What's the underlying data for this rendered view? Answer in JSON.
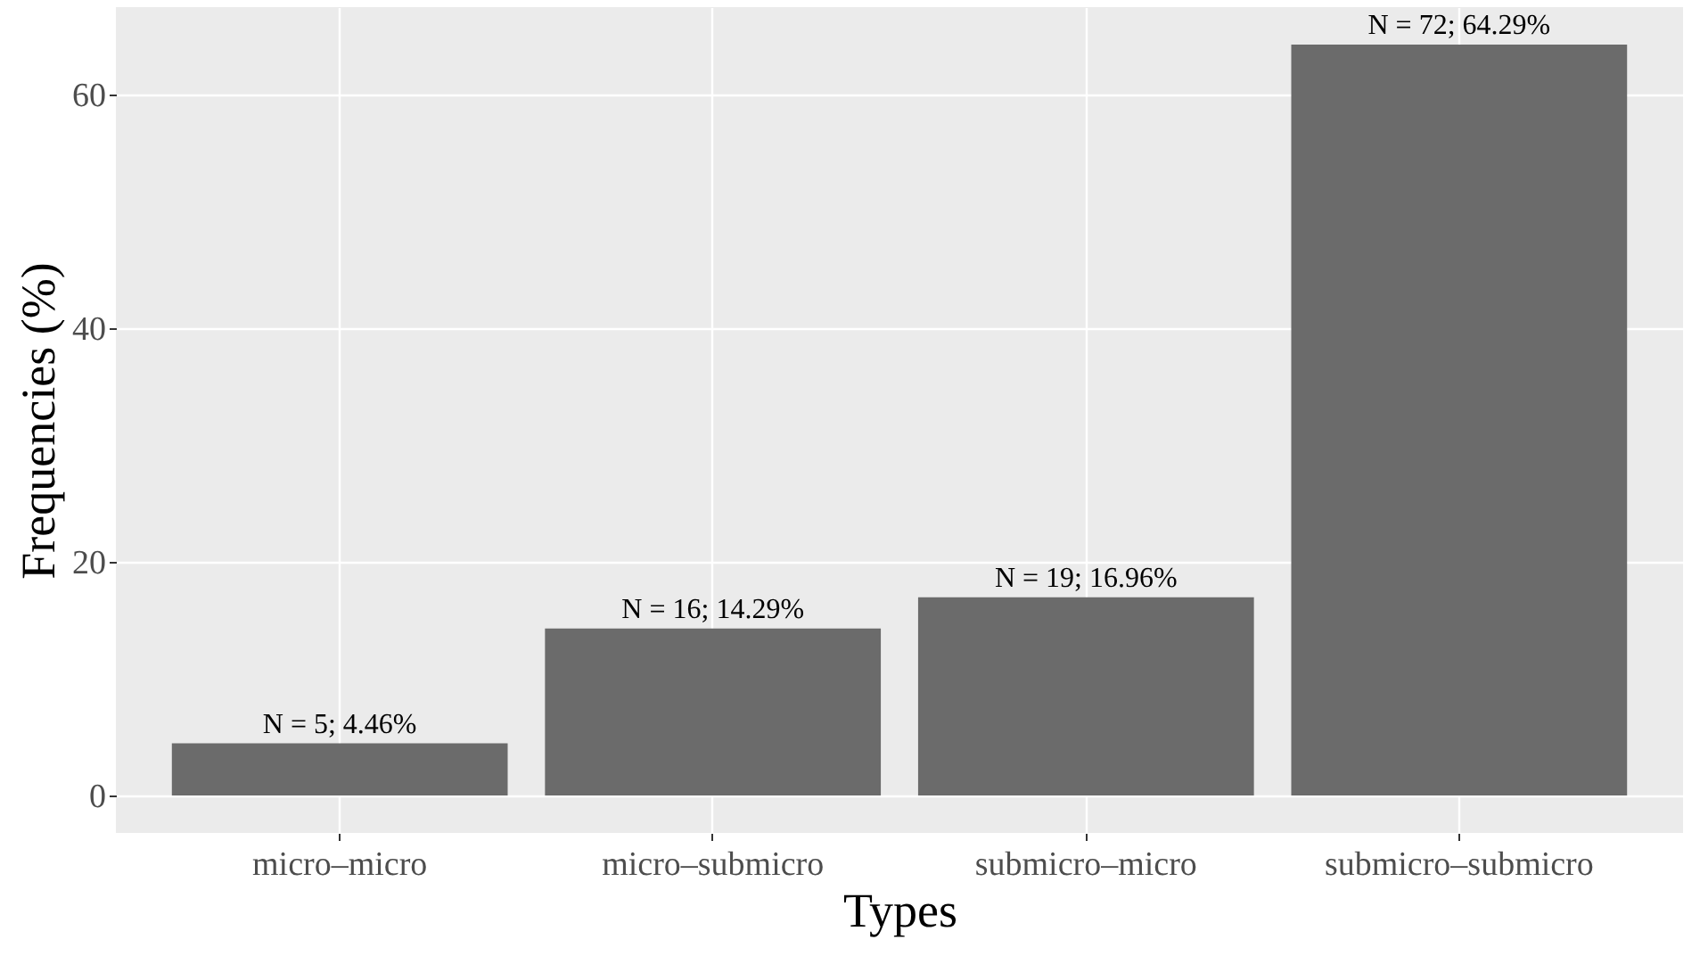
{
  "chart_data": {
    "type": "bar",
    "xlabel": "Types",
    "ylabel": "Frequencies (%)",
    "categories": [
      "micro–micro",
      "micro–submicro",
      "submicro–micro",
      "submicro–submicro"
    ],
    "values": [
      4.46,
      14.29,
      16.96,
      64.29
    ],
    "value_labels": [
      "N = 5; 4.46%",
      "N = 16; 14.29%",
      "N = 19; 16.96%",
      "N = 72; 64.29%"
    ],
    "color": "#6b6b6b",
    "ylim": [
      -3.21,
      67.5
    ],
    "yticks": [
      0,
      20,
      40,
      60
    ],
    "grid": true
  }
}
